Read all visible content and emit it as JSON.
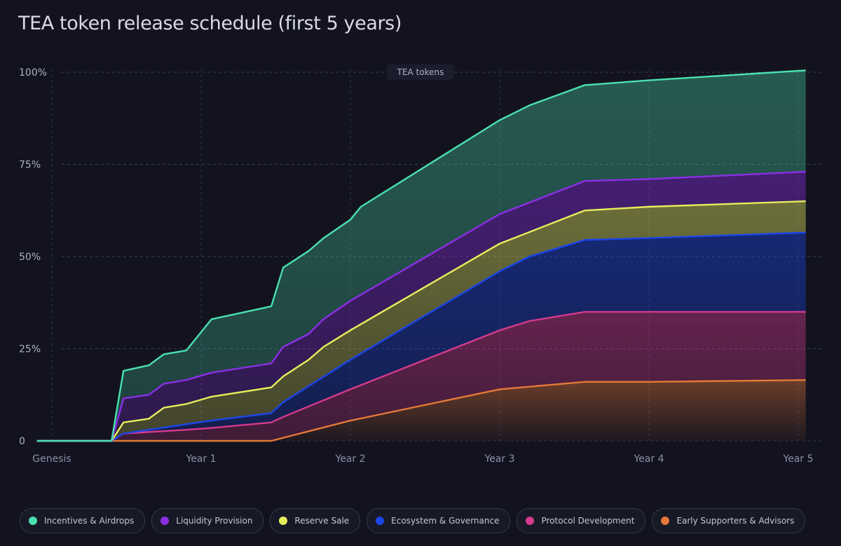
{
  "chart_data": {
    "type": "area",
    "title": "TEA token release schedule (first 5 years)",
    "annotation": "TEA tokens",
    "x_ticks": [
      "Genesis",
      "Year 1",
      "Year 2",
      "Year 3",
      "Year 4",
      "Year 5"
    ],
    "xlim": [
      -0.1,
      5.05
    ],
    "y_ticks": [
      "0",
      "25%",
      "50%",
      "75%",
      "100%"
    ],
    "ylim": [
      0,
      100
    ],
    "grid": true,
    "legend_position": "bottom",
    "series": [
      {
        "name": "Incentives & Airdrops",
        "color": "#4be0b0",
        "points": [
          [
            -0.1,
            0
          ],
          [
            0.4,
            0
          ],
          [
            0.48,
            19
          ],
          [
            0.65,
            20.5
          ],
          [
            0.75,
            23.5
          ],
          [
            0.9,
            24.5
          ],
          [
            1.07,
            33
          ],
          [
            1.47,
            36.5
          ],
          [
            1.55,
            47
          ],
          [
            1.72,
            51.5
          ],
          [
            1.82,
            55
          ],
          [
            2.0,
            60
          ],
          [
            2.07,
            63.5
          ],
          [
            3.0,
            87
          ],
          [
            3.2,
            91
          ],
          [
            3.57,
            96.5
          ],
          [
            4.0,
            97.8
          ],
          [
            5.05,
            100.5
          ]
        ]
      },
      {
        "name": "Liquidity Provision",
        "color": "#8a2fe4",
        "points": [
          [
            -0.1,
            0
          ],
          [
            0.4,
            0
          ],
          [
            0.48,
            11.5
          ],
          [
            0.65,
            12.5
          ],
          [
            0.75,
            15.5
          ],
          [
            0.9,
            16.5
          ],
          [
            1.07,
            18.5
          ],
          [
            1.47,
            21
          ],
          [
            1.55,
            25.5
          ],
          [
            1.72,
            29
          ],
          [
            1.82,
            33
          ],
          [
            2.0,
            38
          ],
          [
            3.0,
            61.5
          ],
          [
            3.57,
            70.5
          ],
          [
            4.0,
            71
          ],
          [
            5.05,
            73
          ]
        ]
      },
      {
        "name": "Reserve Sale",
        "color": "#e7ee5c",
        "points": [
          [
            -0.1,
            0
          ],
          [
            0.4,
            0
          ],
          [
            0.48,
            5
          ],
          [
            0.65,
            6
          ],
          [
            0.75,
            9
          ],
          [
            0.9,
            10
          ],
          [
            1.07,
            12
          ],
          [
            1.47,
            14.5
          ],
          [
            1.55,
            17.5
          ],
          [
            1.72,
            22
          ],
          [
            1.82,
            25.5
          ],
          [
            2.0,
            30
          ],
          [
            3.0,
            53.5
          ],
          [
            3.57,
            62.5
          ],
          [
            4.0,
            63.5
          ],
          [
            5.05,
            65
          ]
        ]
      },
      {
        "name": "Ecosystem & Governance",
        "color": "#1b46e8",
        "points": [
          [
            -0.1,
            0
          ],
          [
            0.4,
            0
          ],
          [
            0.48,
            2
          ],
          [
            0.65,
            3
          ],
          [
            0.9,
            4.5
          ],
          [
            1.07,
            5.5
          ],
          [
            1.47,
            7.5
          ],
          [
            1.55,
            10.5
          ],
          [
            2.0,
            22
          ],
          [
            3.0,
            46
          ],
          [
            3.2,
            50
          ],
          [
            3.57,
            54.5
          ],
          [
            4.0,
            55
          ],
          [
            5.05,
            56.5
          ]
        ]
      },
      {
        "name": "Protocol Development",
        "color": "#d63a8e",
        "points": [
          [
            -0.1,
            0
          ],
          [
            0.4,
            0
          ],
          [
            0.48,
            2
          ],
          [
            0.9,
            3
          ],
          [
            1.07,
            3.5
          ],
          [
            1.47,
            5
          ],
          [
            1.55,
            6.5
          ],
          [
            2.0,
            14
          ],
          [
            3.0,
            30
          ],
          [
            3.2,
            32.5
          ],
          [
            3.57,
            35
          ],
          [
            4.0,
            35
          ],
          [
            5.05,
            35
          ]
        ]
      },
      {
        "name": "Early Supporters & Advisors",
        "color": "#e57838",
        "points": [
          [
            -0.1,
            0
          ],
          [
            1.47,
            0
          ],
          [
            2.0,
            5.5
          ],
          [
            3.0,
            14
          ],
          [
            3.57,
            16
          ],
          [
            4.0,
            16
          ],
          [
            5.05,
            16.5
          ]
        ]
      }
    ]
  }
}
